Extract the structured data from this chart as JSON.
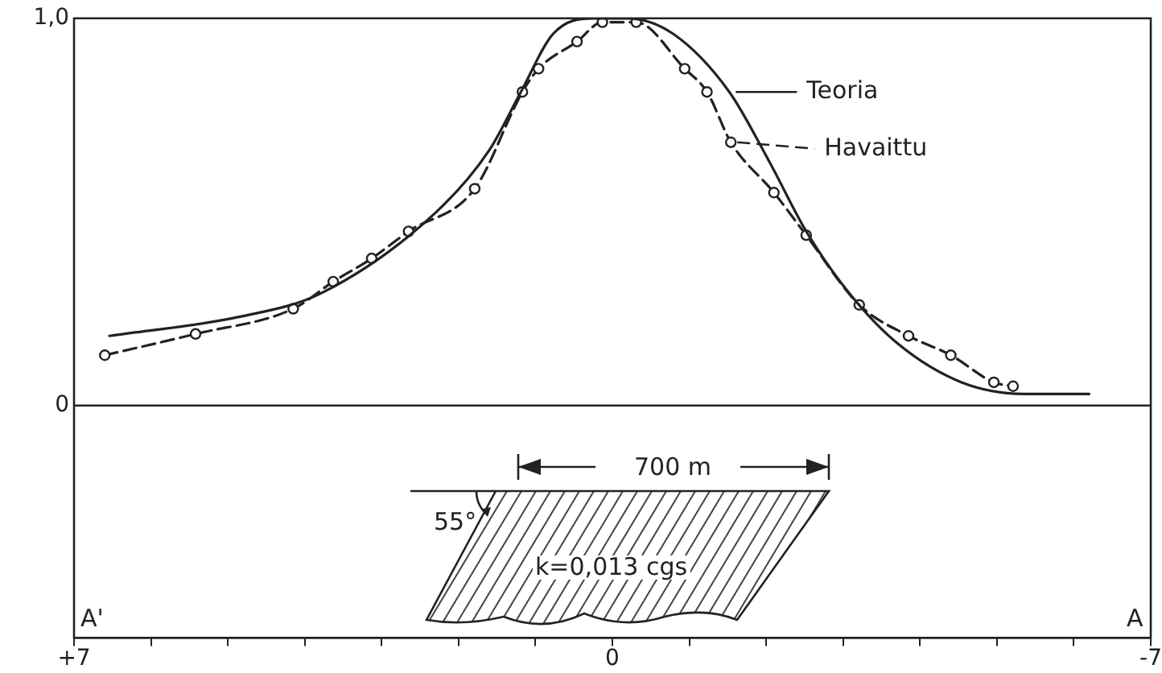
{
  "chart_data": {
    "type": "line",
    "xlim": [
      7,
      -7
    ],
    "ylim": [
      -0.6,
      1.0
    ],
    "xticks": [
      {
        "value": 7,
        "label": "+7"
      },
      {
        "value": 6,
        "label": null
      },
      {
        "value": 5,
        "label": null
      },
      {
        "value": 4,
        "label": null
      },
      {
        "value": 3,
        "label": null
      },
      {
        "value": 2,
        "label": null
      },
      {
        "value": 1,
        "label": null
      },
      {
        "value": 0,
        "label": "0"
      },
      {
        "value": -1,
        "label": null
      },
      {
        "value": -2,
        "label": null
      },
      {
        "value": -3,
        "label": null
      },
      {
        "value": -4,
        "label": null
      },
      {
        "value": -5,
        "label": null
      },
      {
        "value": -6,
        "label": null
      },
      {
        "value": -7,
        "label": "-7"
      }
    ],
    "yticks": [
      {
        "value": 0,
        "label": "0"
      },
      {
        "value": 1.0,
        "label": "1,0"
      }
    ],
    "grid": false,
    "legend": "top right",
    "ref_lines": [
      {
        "axis": "y",
        "value": 0,
        "color": "#222222"
      }
    ],
    "series": [
      {
        "name": "Teoria",
        "color": "#222222",
        "marker": "none",
        "line_style": "solid",
        "x": [
          6.54,
          4.83,
          3.79,
          2.29,
          1.6,
          1.19,
          0.77,
          0.25,
          -0.2,
          -0.79,
          -1.52,
          -2.04,
          -2.52,
          -3.08,
          -3.71,
          -4.54,
          -5.38,
          -6.2
        ],
        "values": [
          0.18,
          0.23,
          0.29,
          0.5,
          0.66,
          0.81,
          0.96,
          1.0,
          1.0,
          0.96,
          0.81,
          0.63,
          0.45,
          0.29,
          0.16,
          0.06,
          0.03,
          0.03
        ]
      },
      {
        "name": "Havaittu",
        "color": "#222222",
        "marker": "circle",
        "line_style": "dashed",
        "x": [
          6.6,
          5.42,
          4.15,
          3.63,
          3.13,
          2.65,
          1.79,
          1.17,
          0.96,
          0.46,
          0.13,
          -0.31,
          -0.94,
          -1.23,
          -1.54,
          -2.1,
          -2.52,
          -3.21,
          -3.85,
          -4.4,
          -4.96,
          -5.21
        ],
        "values": [
          0.13,
          0.185,
          0.25,
          0.32,
          0.38,
          0.45,
          0.56,
          0.81,
          0.87,
          0.94,
          0.99,
          0.99,
          0.87,
          0.81,
          0.68,
          0.55,
          0.44,
          0.26,
          0.18,
          0.13,
          0.06,
          0.05
        ]
      }
    ],
    "annotations": [
      "700 m",
      "55°",
      "k=0,013 cgs",
      "A'",
      "A"
    ]
  }
}
